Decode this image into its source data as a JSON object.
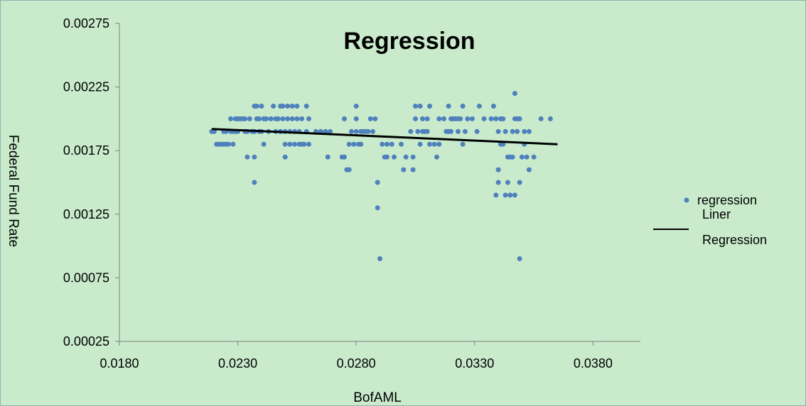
{
  "chart_data": {
    "type": "scatter",
    "title": "Regression",
    "xlabel": "BofAML",
    "ylabel": "Federal  Fund Rate",
    "xlim": [
      0.018,
      0.04
    ],
    "ylim": [
      0.00025,
      0.00275
    ],
    "x_ticks": [
      "0.0180",
      "0.0230",
      "0.0280",
      "0.0330",
      "0.0380"
    ],
    "y_ticks": [
      "0.00025",
      "0.00075",
      "0.00125",
      "0.00175",
      "0.00225",
      "0.00275"
    ],
    "grid": false,
    "legend_position": "right",
    "colors": {
      "points": "#4f81bd",
      "line": "#000000",
      "background": "#c9ebcc"
    },
    "series": [
      {
        "name": "regression",
        "kind": "scatter",
        "points": [
          [
            0.0219,
            0.0019
          ],
          [
            0.022,
            0.0019
          ],
          [
            0.0221,
            0.0018
          ],
          [
            0.0222,
            0.0018
          ],
          [
            0.0223,
            0.0018
          ],
          [
            0.0224,
            0.0019
          ],
          [
            0.0224,
            0.0018
          ],
          [
            0.0225,
            0.0019
          ],
          [
            0.0225,
            0.0018
          ],
          [
            0.0226,
            0.0018
          ],
          [
            0.0227,
            0.0019
          ],
          [
            0.0227,
            0.002
          ],
          [
            0.0228,
            0.0019
          ],
          [
            0.0228,
            0.0018
          ],
          [
            0.0229,
            0.002
          ],
          [
            0.0229,
            0.0019
          ],
          [
            0.023,
            0.002
          ],
          [
            0.023,
            0.0019
          ],
          [
            0.0231,
            0.002
          ],
          [
            0.0232,
            0.002
          ],
          [
            0.0233,
            0.0019
          ],
          [
            0.0233,
            0.002
          ],
          [
            0.0234,
            0.0017
          ],
          [
            0.0234,
            0.0019
          ],
          [
            0.0235,
            0.002
          ],
          [
            0.0236,
            0.0019
          ],
          [
            0.0237,
            0.0021
          ],
          [
            0.0237,
            0.0019
          ],
          [
            0.0237,
            0.0017
          ],
          [
            0.0237,
            0.0015
          ],
          [
            0.0238,
            0.002
          ],
          [
            0.0238,
            0.0021
          ],
          [
            0.0239,
            0.0019
          ],
          [
            0.0239,
            0.002
          ],
          [
            0.024,
            0.0021
          ],
          [
            0.024,
            0.0019
          ],
          [
            0.0241,
            0.002
          ],
          [
            0.0241,
            0.0018
          ],
          [
            0.0242,
            0.002
          ],
          [
            0.0243,
            0.0019
          ],
          [
            0.0244,
            0.002
          ],
          [
            0.0245,
            0.0021
          ],
          [
            0.0246,
            0.0019
          ],
          [
            0.0246,
            0.002
          ],
          [
            0.0247,
            0.002
          ],
          [
            0.0248,
            0.0021
          ],
          [
            0.0248,
            0.0019
          ],
          [
            0.0249,
            0.002
          ],
          [
            0.0249,
            0.0021
          ],
          [
            0.025,
            0.0019
          ],
          [
            0.025,
            0.0018
          ],
          [
            0.025,
            0.0017
          ],
          [
            0.0251,
            0.0021
          ],
          [
            0.0251,
            0.002
          ],
          [
            0.0252,
            0.0019
          ],
          [
            0.0252,
            0.0018
          ],
          [
            0.0253,
            0.0021
          ],
          [
            0.0253,
            0.002
          ],
          [
            0.0254,
            0.0018
          ],
          [
            0.0254,
            0.0019
          ],
          [
            0.0255,
            0.0021
          ],
          [
            0.0255,
            0.002
          ],
          [
            0.0256,
            0.0018
          ],
          [
            0.0256,
            0.0019
          ],
          [
            0.0257,
            0.002
          ],
          [
            0.0257,
            0.0018
          ],
          [
            0.0258,
            0.0018
          ],
          [
            0.0259,
            0.0021
          ],
          [
            0.0259,
            0.0019
          ],
          [
            0.026,
            0.002
          ],
          [
            0.026,
            0.0018
          ],
          [
            0.0263,
            0.0019
          ],
          [
            0.0265,
            0.0019
          ],
          [
            0.0267,
            0.0019
          ],
          [
            0.0268,
            0.0017
          ],
          [
            0.0269,
            0.0019
          ],
          [
            0.0274,
            0.0017
          ],
          [
            0.0275,
            0.002
          ],
          [
            0.0275,
            0.0017
          ],
          [
            0.0276,
            0.0016
          ],
          [
            0.0277,
            0.0018
          ],
          [
            0.0277,
            0.0016
          ],
          [
            0.0278,
            0.0019
          ],
          [
            0.0279,
            0.0018
          ],
          [
            0.028,
            0.002
          ],
          [
            0.028,
            0.0019
          ],
          [
            0.028,
            0.0021
          ],
          [
            0.0281,
            0.0018
          ],
          [
            0.0282,
            0.0019
          ],
          [
            0.0282,
            0.0018
          ],
          [
            0.0283,
            0.0019
          ],
          [
            0.0284,
            0.0019
          ],
          [
            0.0285,
            0.0019
          ],
          [
            0.0286,
            0.002
          ],
          [
            0.0287,
            0.0019
          ],
          [
            0.0288,
            0.002
          ],
          [
            0.0289,
            0.0015
          ],
          [
            0.0289,
            0.0013
          ],
          [
            0.029,
            0.0009
          ],
          [
            0.0291,
            0.0018
          ],
          [
            0.0292,
            0.0017
          ],
          [
            0.0293,
            0.0018
          ],
          [
            0.0293,
            0.0017
          ],
          [
            0.0295,
            0.0018
          ],
          [
            0.0296,
            0.0017
          ],
          [
            0.0299,
            0.0018
          ],
          [
            0.03,
            0.0016
          ],
          [
            0.0301,
            0.0017
          ],
          [
            0.0303,
            0.0019
          ],
          [
            0.0304,
            0.0016
          ],
          [
            0.0304,
            0.0017
          ],
          [
            0.0305,
            0.002
          ],
          [
            0.0305,
            0.0021
          ],
          [
            0.0306,
            0.0019
          ],
          [
            0.0307,
            0.0021
          ],
          [
            0.0307,
            0.0018
          ],
          [
            0.0308,
            0.002
          ],
          [
            0.0308,
            0.0019
          ],
          [
            0.0309,
            0.0019
          ],
          [
            0.031,
            0.002
          ],
          [
            0.031,
            0.0019
          ],
          [
            0.0311,
            0.0021
          ],
          [
            0.0311,
            0.0018
          ],
          [
            0.0313,
            0.0018
          ],
          [
            0.0314,
            0.0017
          ],
          [
            0.0315,
            0.002
          ],
          [
            0.0315,
            0.0018
          ],
          [
            0.0317,
            0.002
          ],
          [
            0.0318,
            0.0019
          ],
          [
            0.0319,
            0.0019
          ],
          [
            0.0319,
            0.0021
          ],
          [
            0.032,
            0.002
          ],
          [
            0.032,
            0.0019
          ],
          [
            0.0321,
            0.002
          ],
          [
            0.0322,
            0.002
          ],
          [
            0.0323,
            0.002
          ],
          [
            0.0323,
            0.0019
          ],
          [
            0.0324,
            0.002
          ],
          [
            0.0325,
            0.0018
          ],
          [
            0.0325,
            0.0021
          ],
          [
            0.0326,
            0.0019
          ],
          [
            0.0327,
            0.002
          ],
          [
            0.0329,
            0.002
          ],
          [
            0.0331,
            0.0019
          ],
          [
            0.0332,
            0.0021
          ],
          [
            0.0334,
            0.002
          ],
          [
            0.0337,
            0.002
          ],
          [
            0.0338,
            0.0021
          ],
          [
            0.0339,
            0.002
          ],
          [
            0.0339,
            0.0014
          ],
          [
            0.034,
            0.0019
          ],
          [
            0.034,
            0.0016
          ],
          [
            0.034,
            0.0015
          ],
          [
            0.0341,
            0.002
          ],
          [
            0.0341,
            0.0018
          ],
          [
            0.0342,
            0.002
          ],
          [
            0.0342,
            0.0018
          ],
          [
            0.0343,
            0.0014
          ],
          [
            0.0343,
            0.0019
          ],
          [
            0.0344,
            0.0017
          ],
          [
            0.0344,
            0.0015
          ],
          [
            0.0345,
            0.0017
          ],
          [
            0.0345,
            0.0014
          ],
          [
            0.0346,
            0.0019
          ],
          [
            0.0346,
            0.0017
          ],
          [
            0.0347,
            0.0022
          ],
          [
            0.0347,
            0.0014
          ],
          [
            0.0347,
            0.002
          ],
          [
            0.0348,
            0.002
          ],
          [
            0.0348,
            0.0019
          ],
          [
            0.0349,
            0.0015
          ],
          [
            0.0349,
            0.002
          ],
          [
            0.0349,
            0.0009
          ],
          [
            0.035,
            0.0017
          ],
          [
            0.0351,
            0.0018
          ],
          [
            0.0351,
            0.0019
          ],
          [
            0.0352,
            0.0017
          ],
          [
            0.0353,
            0.0019
          ],
          [
            0.0353,
            0.0016
          ],
          [
            0.0355,
            0.0017
          ],
          [
            0.0358,
            0.002
          ],
          [
            0.0362,
            0.002
          ]
        ]
      },
      {
        "name": "Liner Regression",
        "kind": "line",
        "points": [
          [
            0.0219,
            0.00192
          ],
          [
            0.0365,
            0.0018
          ]
        ]
      }
    ],
    "legend": {
      "regression": "regression",
      "line_label_1": "Liner",
      "line_label_2": "Regression"
    }
  }
}
